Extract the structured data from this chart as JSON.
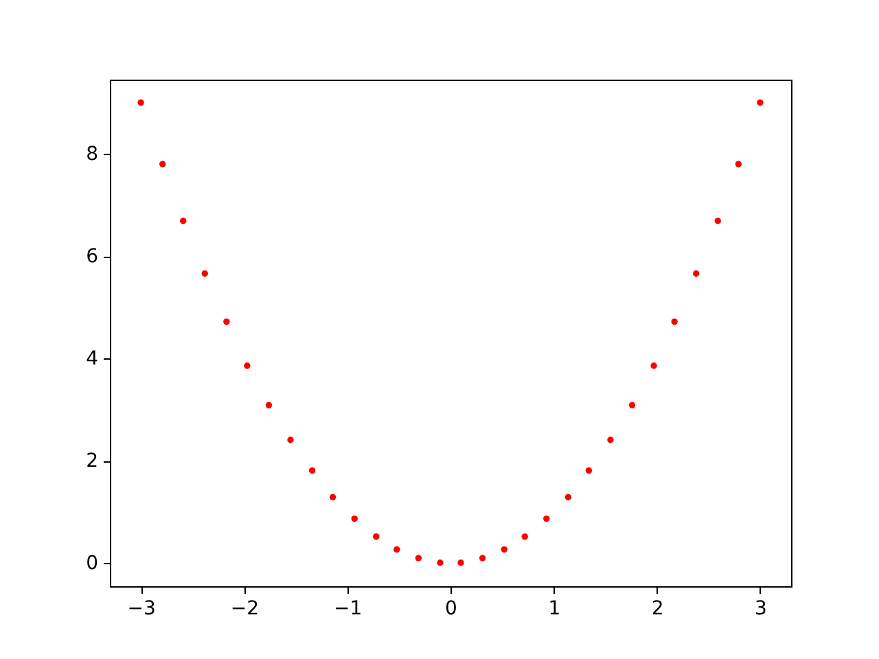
{
  "chart_data": {
    "type": "scatter",
    "marker": "circle",
    "grid": false,
    "x": [
      -3,
      -2.79,
      -2.59,
      -2.38,
      -2.17,
      -1.97,
      -1.76,
      -1.55,
      -1.34,
      -1.14,
      -0.93,
      -0.72,
      -0.52,
      -0.31,
      -0.1,
      0.1,
      0.31,
      0.52,
      0.72,
      0.93,
      1.14,
      1.34,
      1.55,
      1.76,
      1.97,
      2.17,
      2.38,
      2.59,
      2.79,
      3
    ],
    "series": [
      {
        "color": "#ff0000",
        "values": [
          9,
          7.8,
          6.69,
          5.66,
          4.72,
          3.86,
          3.09,
          2.41,
          1.81,
          1.29,
          0.87,
          0.52,
          0.27,
          0.1,
          0.01,
          0.01,
          0.1,
          0.27,
          0.52,
          0.87,
          1.29,
          1.81,
          2.41,
          3.09,
          3.86,
          4.72,
          5.66,
          6.69,
          7.8,
          9
        ]
      }
    ],
    "xlim": [
      -3.3,
      3.3
    ],
    "ylim": [
      -0.45,
      9.45
    ],
    "xticks": [
      {
        "value": -3,
        "label": "−3"
      },
      {
        "value": -2,
        "label": "−2"
      },
      {
        "value": -1,
        "label": "−1"
      },
      0,
      1,
      2,
      3
    ],
    "yticks": [
      0,
      2,
      4,
      6,
      8
    ]
  }
}
